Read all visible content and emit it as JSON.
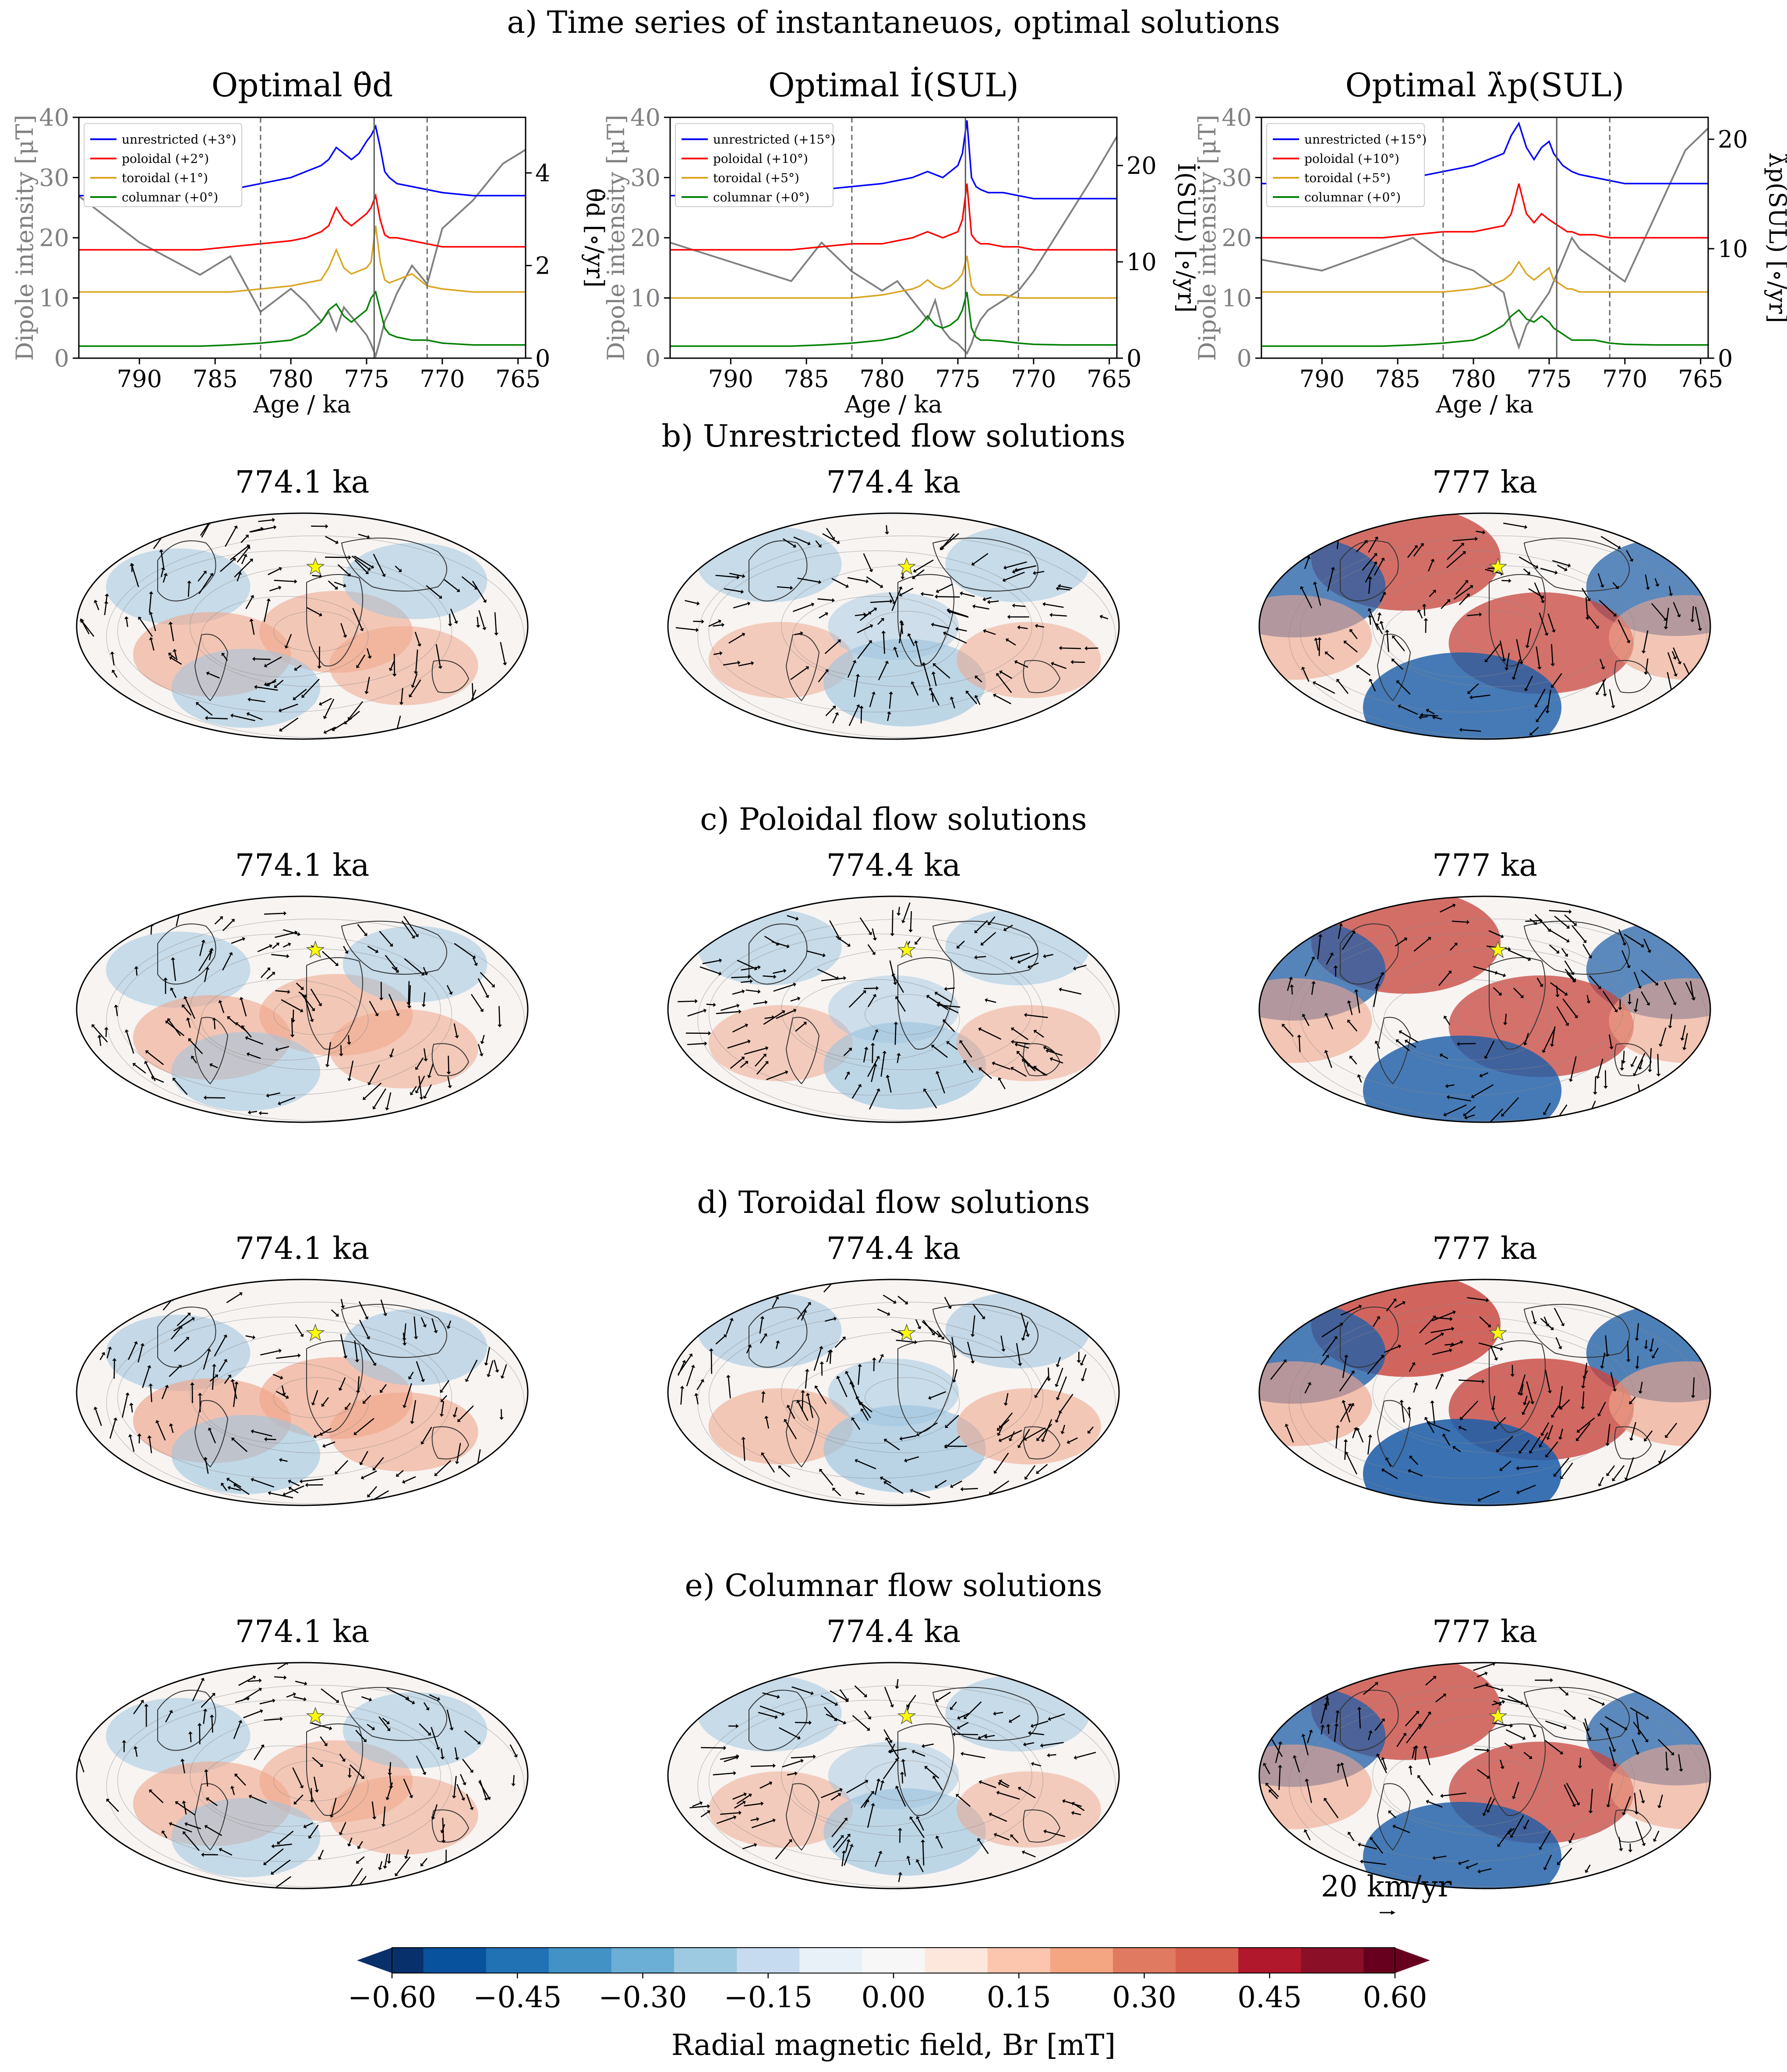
{
  "figure_title": "a) Time series of instantaneuos, optimal solutions",
  "timeseries": {
    "xlabel": "Age / ka",
    "left_ylabel": "Dipole intensity [μT]",
    "left_ylim": [
      0,
      40
    ],
    "left_ticks": [
      "0",
      "10",
      "20",
      "30",
      "40"
    ],
    "xlim": [
      794,
      764.5
    ],
    "xticks": [
      "790",
      "785",
      "780",
      "775",
      "770",
      "765"
    ],
    "xtick_values": [
      790,
      785,
      780,
      775,
      770,
      765
    ],
    "vlines": [
      782,
      774.5,
      771
    ],
    "panels": [
      {
        "title": "Optimal θ̇d",
        "right_ylabel": "θ̇d [∘/yr]",
        "right_ticks": [
          "0",
          "2",
          "4"
        ],
        "right_tick_values": [
          0,
          2,
          4
        ],
        "right_max": 5.2,
        "legend": [
          "unrestricted (+3°)",
          "poloidal (+2°)",
          "toroidal (+1°)",
          "columnar (+0°)"
        ]
      },
      {
        "title": "Optimal İ(SUL)",
        "right_ylabel": "İ(SUL) [∘/yr]",
        "right_ticks": [
          "0",
          "10",
          "20"
        ],
        "right_tick_values": [
          0,
          10,
          20
        ],
        "right_max": 25,
        "legend": [
          "unrestricted (+15°)",
          "poloidal (+10°)",
          "toroidal (+5°)",
          "columnar (+0°)"
        ]
      },
      {
        "title": "Optimal λ̇p(SUL)",
        "right_ylabel": "λ̇p(SUL) [∘/yr]",
        "right_ticks": [
          "0",
          "10",
          "20"
        ],
        "right_tick_values": [
          0,
          10,
          20
        ],
        "right_max": 22,
        "legend": [
          "unrestricted (+15°)",
          "poloidal (+10°)",
          "toroidal (+5°)",
          "columnar (+0°)"
        ]
      }
    ]
  },
  "rows": [
    {
      "title": "b) Unrestricted flow solutions",
      "times": [
        "774.1 ka",
        "774.4 ka",
        "777 ka"
      ]
    },
    {
      "title": "c) Poloidal flow solutions",
      "times": [
        "774.1 ka",
        "774.4 ka",
        "777 ka"
      ]
    },
    {
      "title": "d) Toroidal flow solutions",
      "times": [
        "774.1 ka",
        "774.4 ka",
        "777 ka"
      ]
    },
    {
      "title": "e) Columnar flow solutions",
      "times": [
        "774.1 ka",
        "774.4 ka",
        "777 ka"
      ]
    }
  ],
  "scale_arrow_label": "20 km/yr",
  "colorbar": {
    "label": "Radial magnetic field, Br [mT]",
    "ticks": [
      "−0.60",
      "−0.45",
      "−0.30",
      "−0.15",
      "0.00",
      "0.15",
      "0.30",
      "0.45",
      "0.60"
    ],
    "range": [
      -0.6,
      0.6
    ],
    "colormap": "RdBu_r"
  },
  "colors": {
    "unrestricted": "#0000ff",
    "poloidal": "#ff0000",
    "toroidal": "#daa520",
    "columnar": "#008000",
    "secondary": "#808080",
    "star": "#ffff00"
  },
  "chart_data": [
    {
      "type": "line",
      "title": "Optimal θ̇d",
      "xlabel": "Age / ka",
      "ylabel": "Dipole intensity [μT]",
      "ylim": [
        0,
        40
      ],
      "x": [
        794,
        790,
        786,
        784,
        782,
        780,
        779,
        778,
        777.5,
        777,
        776.5,
        776,
        775.5,
        775,
        774.7,
        774.4,
        774.1,
        773.8,
        773.5,
        773,
        772,
        771,
        770,
        768,
        766,
        764.5
      ],
      "series": [
        {
          "name": "unrestricted (+3°)",
          "values": [
            27,
            27,
            27.5,
            28,
            29,
            30,
            31,
            32,
            33,
            35,
            34,
            33,
            34,
            36,
            37,
            38.5,
            35,
            31,
            30,
            29,
            28.5,
            28,
            27.5,
            27,
            27,
            27
          ]
        },
        {
          "name": "poloidal (+2°)",
          "values": [
            18,
            18,
            18,
            18.5,
            19,
            19.5,
            20,
            21,
            22,
            25,
            23,
            22,
            23,
            24,
            25,
            27,
            23,
            20.5,
            20,
            20,
            19.5,
            19,
            18.5,
            18.5,
            18.5,
            18.5
          ]
        },
        {
          "name": "toroidal (+1°)",
          "values": [
            11,
            11,
            11,
            11,
            11.5,
            12,
            12.5,
            13,
            15,
            18,
            15,
            14,
            14.5,
            15,
            16,
            22,
            16,
            13,
            12.5,
            13,
            14,
            12,
            11.5,
            11,
            11,
            11
          ]
        },
        {
          "name": "columnar (+0°)",
          "values": [
            2,
            2,
            2,
            2.2,
            2.5,
            3,
            4,
            6,
            8,
            9,
            7,
            6,
            7,
            8,
            10,
            11,
            8,
            5,
            4,
            3.5,
            3,
            3,
            2.5,
            2.2,
            2.2,
            2.2
          ]
        },
        {
          "name": "θ̇d [∘/yr]",
          "axis": "right",
          "values": [
            3.5,
            2.5,
            1.8,
            2.2,
            1.0,
            1.5,
            1.2,
            0.8,
            1.0,
            0.6,
            1.1,
            0.9,
            0.7,
            0.5,
            0.3,
            0.05,
            0.4,
            0.8,
            1.0,
            1.4,
            2.0,
            1.6,
            2.8,
            3.4,
            4.2,
            4.5
          ]
        }
      ]
    },
    {
      "type": "line",
      "title": "Optimal İ(SUL)",
      "xlabel": "Age / ka",
      "ylabel": "Dipole intensity [μT]",
      "ylim": [
        0,
        40
      ],
      "x": [
        794,
        790,
        786,
        784,
        782,
        780,
        779,
        778,
        777.5,
        777,
        776.5,
        776,
        775.5,
        775,
        774.7,
        774.4,
        774.1,
        773.8,
        773.5,
        773,
        772,
        771,
        770,
        768,
        766,
        764.5
      ],
      "series": [
        {
          "name": "unrestricted (+15°)",
          "values": [
            27,
            27,
            27.5,
            28,
            28.5,
            29,
            29.5,
            30,
            30.5,
            31,
            30.5,
            30,
            31,
            32,
            34,
            39.5,
            30,
            28.5,
            28,
            27.5,
            27.5,
            27,
            26.5,
            26.5,
            26.5,
            26.5
          ]
        },
        {
          "name": "poloidal (+10°)",
          "values": [
            18,
            18,
            18,
            18.5,
            19,
            19,
            19.5,
            20,
            20.5,
            21,
            20.5,
            20,
            20.5,
            21,
            23,
            29,
            20.5,
            19.5,
            19,
            19,
            18.5,
            18.5,
            18,
            18,
            18,
            18
          ]
        },
        {
          "name": "toroidal (+5°)",
          "values": [
            10,
            10,
            10,
            10,
            10,
            10.5,
            11,
            11.5,
            12,
            13,
            12,
            11.5,
            12,
            13,
            14,
            17,
            12,
            11,
            10.5,
            10.5,
            10.5,
            10,
            10,
            10,
            10,
            10
          ]
        },
        {
          "name": "columnar (+0°)",
          "values": [
            2,
            2,
            2,
            2.2,
            2.5,
            3,
            3.5,
            4.5,
            5.5,
            7,
            5.5,
            5,
            5.5,
            6.5,
            8,
            11,
            5,
            3.5,
            3,
            3,
            2.8,
            2.5,
            2.3,
            2.2,
            2.2,
            2.2
          ]
        },
        {
          "name": "İ(SUL) [∘/yr]",
          "axis": "right",
          "values": [
            12,
            10,
            8,
            12,
            9,
            7,
            8,
            6,
            5,
            4,
            6,
            3,
            2,
            1.5,
            1,
            0.5,
            1.5,
            3,
            4,
            5,
            6,
            7,
            9,
            14,
            19,
            23
          ]
        }
      ]
    },
    {
      "type": "line",
      "title": "Optimal λ̇p(SUL)",
      "xlabel": "Age / ka",
      "ylabel": "Dipole intensity [μT]",
      "ylim": [
        0,
        40
      ],
      "x": [
        794,
        790,
        786,
        784,
        782,
        780,
        779,
        778,
        777.5,
        777,
        776.5,
        776,
        775.5,
        775,
        774.7,
        774.4,
        774.1,
        773.8,
        773.5,
        773,
        772,
        771,
        770,
        768,
        766,
        764.5
      ],
      "series": [
        {
          "name": "unrestricted (+15°)",
          "values": [
            29,
            29,
            29.5,
            30,
            31,
            32,
            33,
            34,
            37,
            39,
            35,
            33,
            35,
            36,
            34,
            33,
            32,
            31.5,
            31,
            30.5,
            30,
            29.5,
            29,
            29,
            29,
            29
          ]
        },
        {
          "name": "poloidal (+10°)",
          "values": [
            20,
            20,
            20,
            20.5,
            21,
            21,
            21.5,
            22,
            24,
            29,
            24,
            22.5,
            24,
            23,
            22.5,
            22,
            21.5,
            21,
            21,
            20.5,
            20.5,
            20,
            20,
            20,
            20,
            20
          ]
        },
        {
          "name": "toroidal (+5°)",
          "values": [
            11,
            11,
            11,
            11,
            11,
            11.5,
            12,
            13,
            14,
            16,
            14,
            13,
            14,
            15,
            13,
            12.5,
            12,
            11.5,
            11.5,
            11,
            11,
            11,
            11,
            11,
            11,
            11
          ]
        },
        {
          "name": "columnar (+0°)",
          "values": [
            2,
            2,
            2,
            2.2,
            2.5,
            3,
            4,
            5.5,
            7,
            8,
            6.5,
            6,
            7,
            6,
            5,
            4.5,
            4,
            3.5,
            3,
            3,
            3,
            2.5,
            2.3,
            2.2,
            2.2,
            2.2
          ]
        },
        {
          "name": "λ̇p(SUL) [∘/yr]",
          "axis": "right",
          "values": [
            9,
            8,
            10,
            11,
            9,
            8,
            7,
            6,
            3,
            1,
            3,
            4,
            5,
            6,
            7,
            8,
            9,
            10,
            11,
            10,
            9,
            8,
            7,
            13,
            19,
            21
          ]
        }
      ]
    }
  ]
}
